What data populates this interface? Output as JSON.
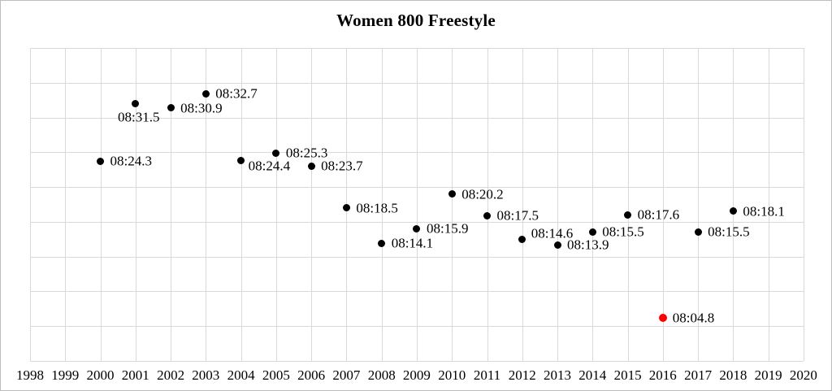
{
  "figure": {
    "title": "Women 800 Freestyle"
  },
  "chart_data": {
    "type": "scatter",
    "title": "Women 800 Freestyle",
    "xlabel": "",
    "ylabel": "",
    "xlim": [
      1998,
      2020
    ],
    "x_tick_labels": [
      "1998",
      "1999",
      "2000",
      "2001",
      "2002",
      "2003",
      "2004",
      "2005",
      "2006",
      "2007",
      "2008",
      "2009",
      "2010",
      "2011",
      "2012",
      "2013",
      "2014",
      "2015",
      "2016",
      "2017",
      "2018",
      "2019",
      "2020"
    ],
    "y_tick_labels": [],
    "grid": true,
    "legend": false,
    "points": [
      {
        "year": 2000,
        "time": "08:24.3",
        "color": "black",
        "label_pos": "right"
      },
      {
        "year": 2001,
        "time": "08:31.5",
        "color": "black",
        "label_pos": "below"
      },
      {
        "year": 2002,
        "time": "08:30.9",
        "color": "black",
        "label_pos": "right"
      },
      {
        "year": 2003,
        "time": "08:32.7",
        "color": "black",
        "label_pos": "right"
      },
      {
        "year": 2004,
        "time": "08:24.4",
        "color": "black",
        "label_pos": "below-right"
      },
      {
        "year": 2005,
        "time": "08:25.3",
        "color": "black",
        "label_pos": "right"
      },
      {
        "year": 2006,
        "time": "08:23.7",
        "color": "black",
        "label_pos": "right"
      },
      {
        "year": 2007,
        "time": "08:18.5",
        "color": "black",
        "label_pos": "right"
      },
      {
        "year": 2008,
        "time": "08:14.1",
        "color": "black",
        "label_pos": "right"
      },
      {
        "year": 2009,
        "time": "08:15.9",
        "color": "black",
        "label_pos": "right"
      },
      {
        "year": 2010,
        "time": "08:20.2",
        "color": "black",
        "label_pos": "right"
      },
      {
        "year": 2011,
        "time": "08:17.5",
        "color": "black",
        "label_pos": "right"
      },
      {
        "year": 2012,
        "time": "08:14.6",
        "color": "black",
        "label_pos": "above-right"
      },
      {
        "year": 2013,
        "time": "08:13.9",
        "color": "black",
        "label_pos": "right"
      },
      {
        "year": 2014,
        "time": "08:15.5",
        "color": "black",
        "label_pos": "right"
      },
      {
        "year": 2015,
        "time": "08:17.6",
        "color": "black",
        "label_pos": "right"
      },
      {
        "year": 2016,
        "time": "08:04.8",
        "color": "red",
        "label_pos": "right"
      },
      {
        "year": 2017,
        "time": "08:15.5",
        "color": "black",
        "label_pos": "right"
      },
      {
        "year": 2018,
        "time": "08:18.1",
        "color": "black",
        "label_pos": "right"
      }
    ],
    "colors": {
      "point": "#000000",
      "highlight": "#ff0000",
      "grid": "#d9d9d9",
      "text": "#000000",
      "background": "#ffffff",
      "border": "#bdbdbd"
    }
  }
}
